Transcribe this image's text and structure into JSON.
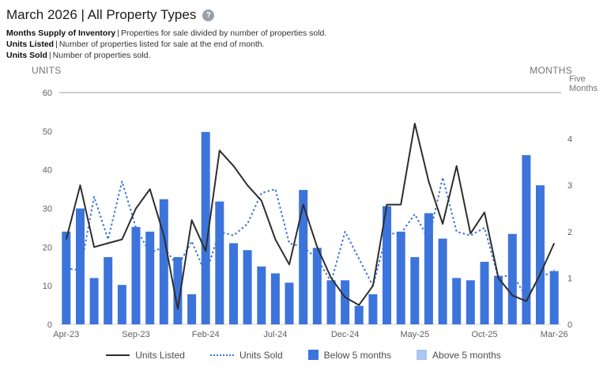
{
  "header": {
    "title": "March 2026 | All Property Types",
    "help_glyph": "?"
  },
  "separator": "|",
  "definitions": [
    {
      "term": "Months Supply of Inventory",
      "text": "Properties for sale divided by number of properties sold."
    },
    {
      "term": "Units Listed",
      "text": "Number of properties listed for sale at the end of month."
    },
    {
      "term": "Units Sold",
      "text": "Number of properties sold."
    }
  ],
  "legend": [
    {
      "label": "Units Listed",
      "swatch": "line-solid",
      "color": "#2e2e2e"
    },
    {
      "label": "Units Sold",
      "swatch": "line-dotted",
      "color": "#3c74db"
    },
    {
      "label": "Below 5 months",
      "swatch": "square",
      "color": "#3c74db"
    },
    {
      "label": "Above 5 months",
      "swatch": "square",
      "color": "#a9c8f0"
    }
  ],
  "colors": {
    "bar_below": "#3c74db",
    "bar_above": "#a9c8f0",
    "units_listed_line": "#2e2e2e",
    "units_sold_line": "#3c74db",
    "reference_line": "#9e9e9e",
    "baseline": "#dadada",
    "axis_text": "#616161",
    "axis_title": "#757575"
  },
  "chart_data": {
    "type": "bar",
    "title": "March 2026 | All Property Types",
    "x": [
      "Apr-23",
      "May-23",
      "Jun-23",
      "Jul-23",
      "Aug-23",
      "Sep-23",
      "Oct-23",
      "Nov-23",
      "Dec-23",
      "Jan-24",
      "Feb-24",
      "Mar-24",
      "Apr-24",
      "May-24",
      "Jun-24",
      "Jul-24",
      "Aug-24",
      "Sep-24",
      "Oct-24",
      "Nov-24",
      "Dec-24",
      "Jan-25",
      "Feb-25",
      "Mar-25",
      "Apr-25",
      "May-25",
      "Jun-25",
      "Jul-25",
      "Aug-25",
      "Sep-25",
      "Oct-25",
      "Nov-25",
      "Dec-25",
      "Jan-26",
      "Feb-26",
      "Mar-26"
    ],
    "x_tick_labels": [
      "Apr-23",
      "Sep-23",
      "Feb-24",
      "Jul-24",
      "Dec-24",
      "May-25",
      "Oct-25",
      "Mar-26"
    ],
    "x_label_every": 5,
    "left_axis": {
      "title": "UNITS",
      "min": 0,
      "max": 60,
      "ticks": [
        0,
        10,
        20,
        30,
        40,
        50,
        60
      ]
    },
    "right_axis": {
      "title": "MONTHS",
      "min": 0,
      "max": 5,
      "ticks": [
        0,
        1,
        2,
        3,
        4
      ],
      "reference_value": 5,
      "reference_label": "Five Months"
    },
    "grid": "top-reference-line-only",
    "legend_position": "bottom",
    "series": [
      {
        "name": "Months Supply of Inventory",
        "kind": "bar",
        "axis": "right",
        "threshold": 5,
        "values": [
          2.0,
          2.5,
          1.0,
          1.45,
          0.85,
          2.1,
          2.0,
          2.7,
          1.45,
          0.65,
          4.15,
          2.65,
          1.75,
          1.6,
          1.25,
          1.1,
          0.9,
          2.9,
          1.65,
          0.95,
          0.95,
          0.4,
          0.65,
          2.55,
          2.0,
          1.45,
          2.4,
          1.85,
          1.0,
          0.95,
          1.35,
          1.05,
          1.95,
          3.65,
          3.0,
          1.15
        ]
      },
      {
        "name": "Units Listed",
        "kind": "line",
        "axis": "left",
        "values": [
          22,
          36,
          20,
          21,
          22,
          30,
          35,
          23,
          4,
          27,
          19,
          45,
          41,
          36,
          32,
          22,
          15.5,
          31,
          20,
          12,
          7,
          5,
          10,
          31,
          31,
          52,
          37,
          26,
          41,
          23.5,
          29,
          12,
          7.5,
          6,
          13,
          21
        ]
      },
      {
        "name": "Units Sold",
        "kind": "line-dotted",
        "axis": "left",
        "values": [
          14.5,
          14,
          33,
          22,
          37,
          25,
          18.5,
          20,
          15,
          21.5,
          13,
          24,
          23,
          26,
          34,
          35,
          21,
          20,
          17,
          11,
          24,
          17,
          10,
          23.5,
          23.5,
          28.5,
          22,
          38,
          24,
          23,
          25,
          12,
          13,
          7,
          12,
          14
        ]
      }
    ]
  }
}
